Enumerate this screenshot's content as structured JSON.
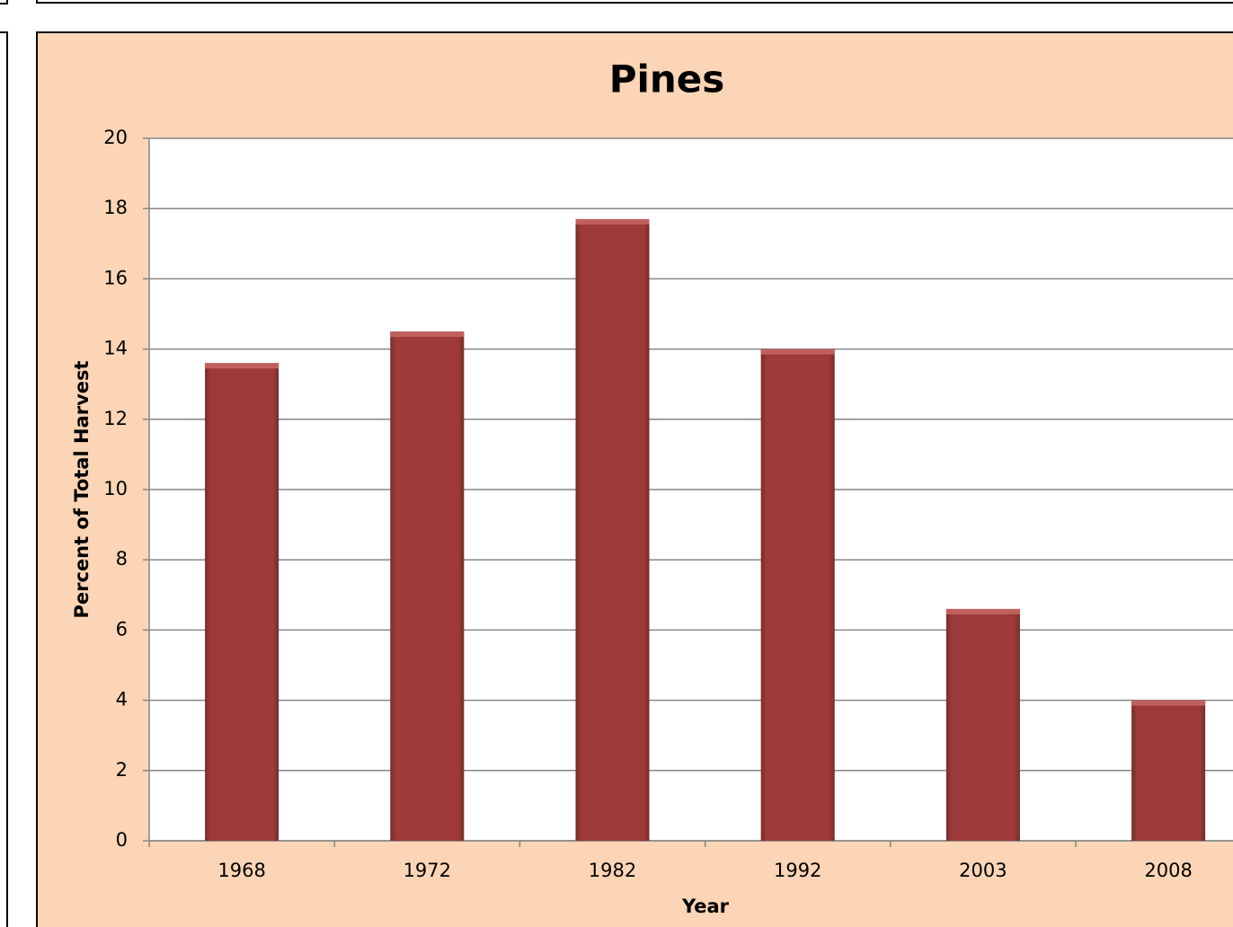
{
  "chart_data": {
    "type": "bar",
    "title": "Pines",
    "x_label": "Year",
    "y_label": "Percent of Total  Harvest",
    "categories": [
      "1968",
      "1972",
      "1982",
      "1992",
      "2003",
      "2008"
    ],
    "values": [
      13.6,
      14.5,
      17.7,
      14.0,
      6.6,
      4.0
    ],
    "color": "#9e3b3a",
    "ylim": [
      0,
      20
    ],
    "yticks": [
      0,
      2,
      4,
      6,
      8,
      10,
      12,
      14,
      16,
      18,
      20
    ],
    "grid": true
  }
}
